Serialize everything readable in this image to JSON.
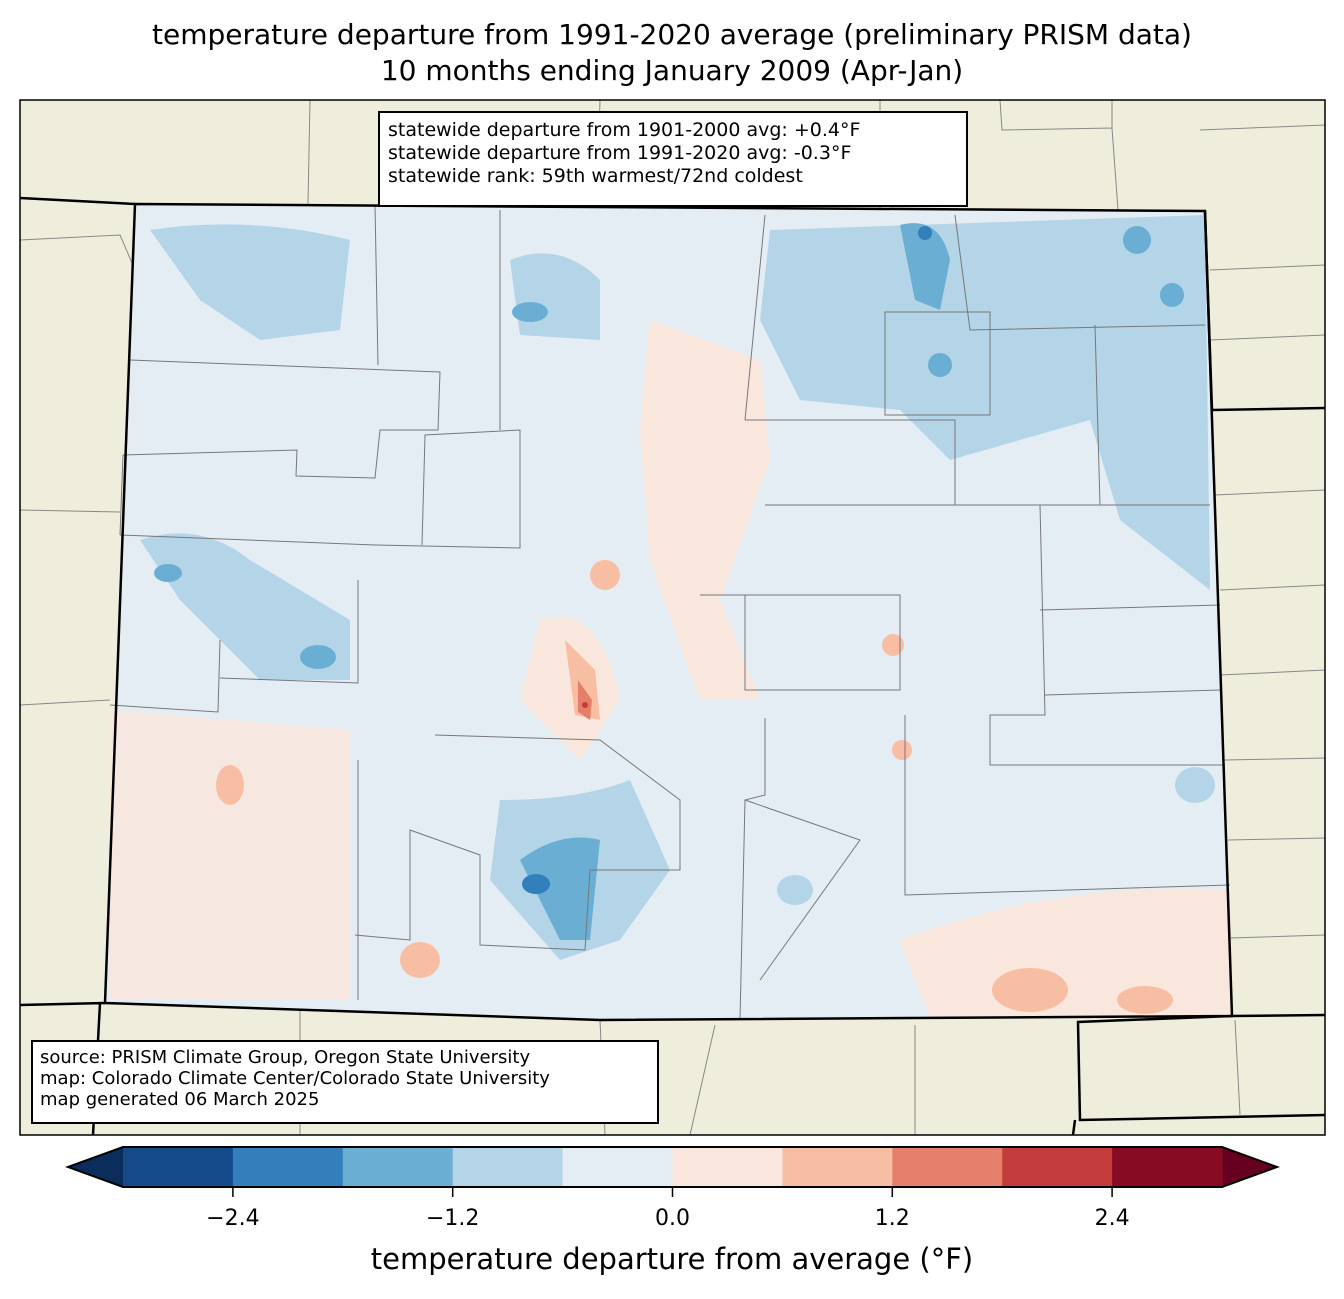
{
  "title": {
    "line1": "temperature departure from 1991-2020 average (preliminary PRISM data)",
    "line2": "10 months ending January 2009 (Apr-Jan)"
  },
  "stats_box": {
    "line1": "statewide departure from 1901-2000 avg: +0.4°F",
    "line2": "statewide departure from 1991-2020 avg: -0.3°F",
    "line3": "statewide rank: 59th warmest/72nd coldest"
  },
  "source_box": {
    "line1": "source: PRISM Climate Group, Oregon State University",
    "line2": "map: Colorado Climate Center/Colorado State University",
    "line3": "map generated 06 March 2025"
  },
  "colorbar": {
    "label": "temperature departure from average (°F)",
    "bounds": [
      -3.0,
      -2.4,
      -1.8,
      -1.2,
      -0.6,
      0.0,
      0.6,
      1.2,
      1.8,
      2.4,
      3.0
    ],
    "colors": [
      "#154a8a",
      "#337fbb",
      "#6aaed3",
      "#b3d5e7",
      "#e5edf4",
      "#f9e6dc",
      "#f8bea4",
      "#e4806a",
      "#c43b3c",
      "#880b24"
    ],
    "under_color": "#0b2d5b",
    "over_color": "#670020",
    "ticks": [
      "−2.4",
      "−1.2",
      "0.0",
      "1.2",
      "2.4"
    ],
    "tick_values": [
      -2.4,
      -1.2,
      0.0,
      1.2,
      2.4
    ]
  },
  "map_colors": {
    "land": "#efeedc",
    "state_fill": "#e5edf4"
  }
}
